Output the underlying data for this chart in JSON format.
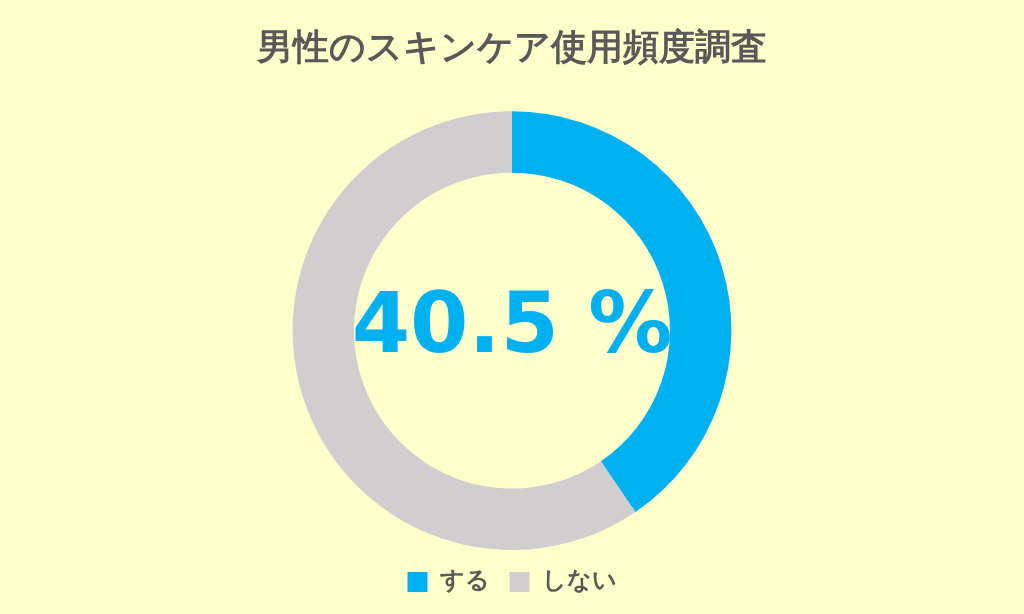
{
  "chart_data": {
    "type": "donut",
    "title": "男性のスキンケア使用頻度調査",
    "categories": [
      "する",
      "しない"
    ],
    "values": [
      40.5,
      59.5
    ],
    "colors": [
      "#00b0f0",
      "#d0cece"
    ],
    "value_labels": [
      "40.5 %",
      null
    ],
    "legend": "bottom"
  }
}
